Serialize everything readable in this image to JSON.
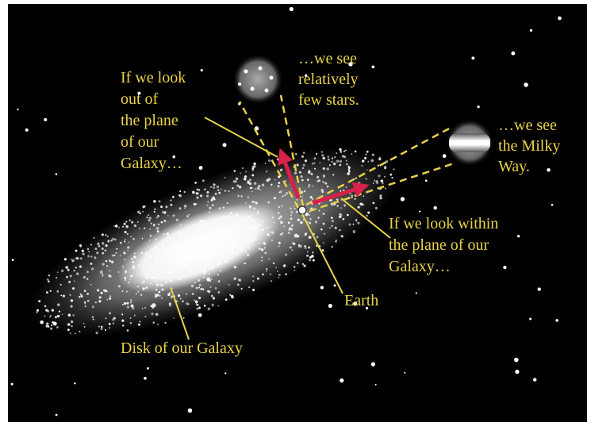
{
  "labels": {
    "out_of_plane": [
      "If we look",
      "out of",
      "the plane",
      "of our",
      "Galaxy…"
    ],
    "few_stars": [
      "…we see",
      "relatively",
      "few stars."
    ],
    "milky_way": [
      "…we see",
      "the Milky",
      "Way."
    ],
    "within_plane": [
      "If we look within",
      "the plane of our",
      "Galaxy…"
    ],
    "earth": "Earth",
    "disk": "Disk of our Galaxy"
  }
}
